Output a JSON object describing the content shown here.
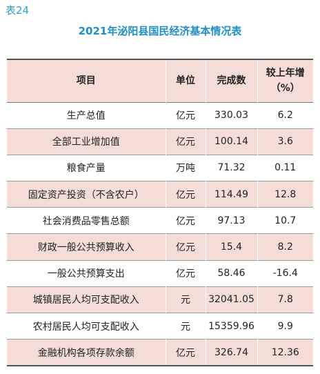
{
  "header": {
    "label": "表24",
    "title": "2021年泌阳县国民经济基本情况表"
  },
  "table": {
    "columns": [
      "项目",
      "单位",
      "完成数",
      [
        "较上年增",
        "（%）"
      ]
    ],
    "rows": [
      [
        "生产总值",
        "亿元",
        "330.03",
        "6.2"
      ],
      [
        "全部工业增加值",
        "亿元",
        "100.14",
        "3.6"
      ],
      [
        "粮食产量",
        "万吨",
        "71.32",
        "0.11"
      ],
      [
        "固定资产投资（不含农户）",
        "亿元",
        "114.49",
        "12.8"
      ],
      [
        "社会消费品零售总额",
        "亿元",
        "97.13",
        "10.7"
      ],
      [
        "财政一般公共预算收入",
        "亿元",
        "15.4",
        "8.2"
      ],
      [
        "一般公共预算支出",
        "亿元",
        "58.46",
        "-16.4"
      ],
      [
        "城镇居民人均可支配收入",
        "元",
        "32041.05",
        "7.8"
      ],
      [
        "农村居民人均可支配收入",
        "元",
        "15359.96",
        "9.9"
      ],
      [
        "金融机构各项存款余额",
        "亿元",
        "326.74",
        "12.36"
      ]
    ]
  }
}
